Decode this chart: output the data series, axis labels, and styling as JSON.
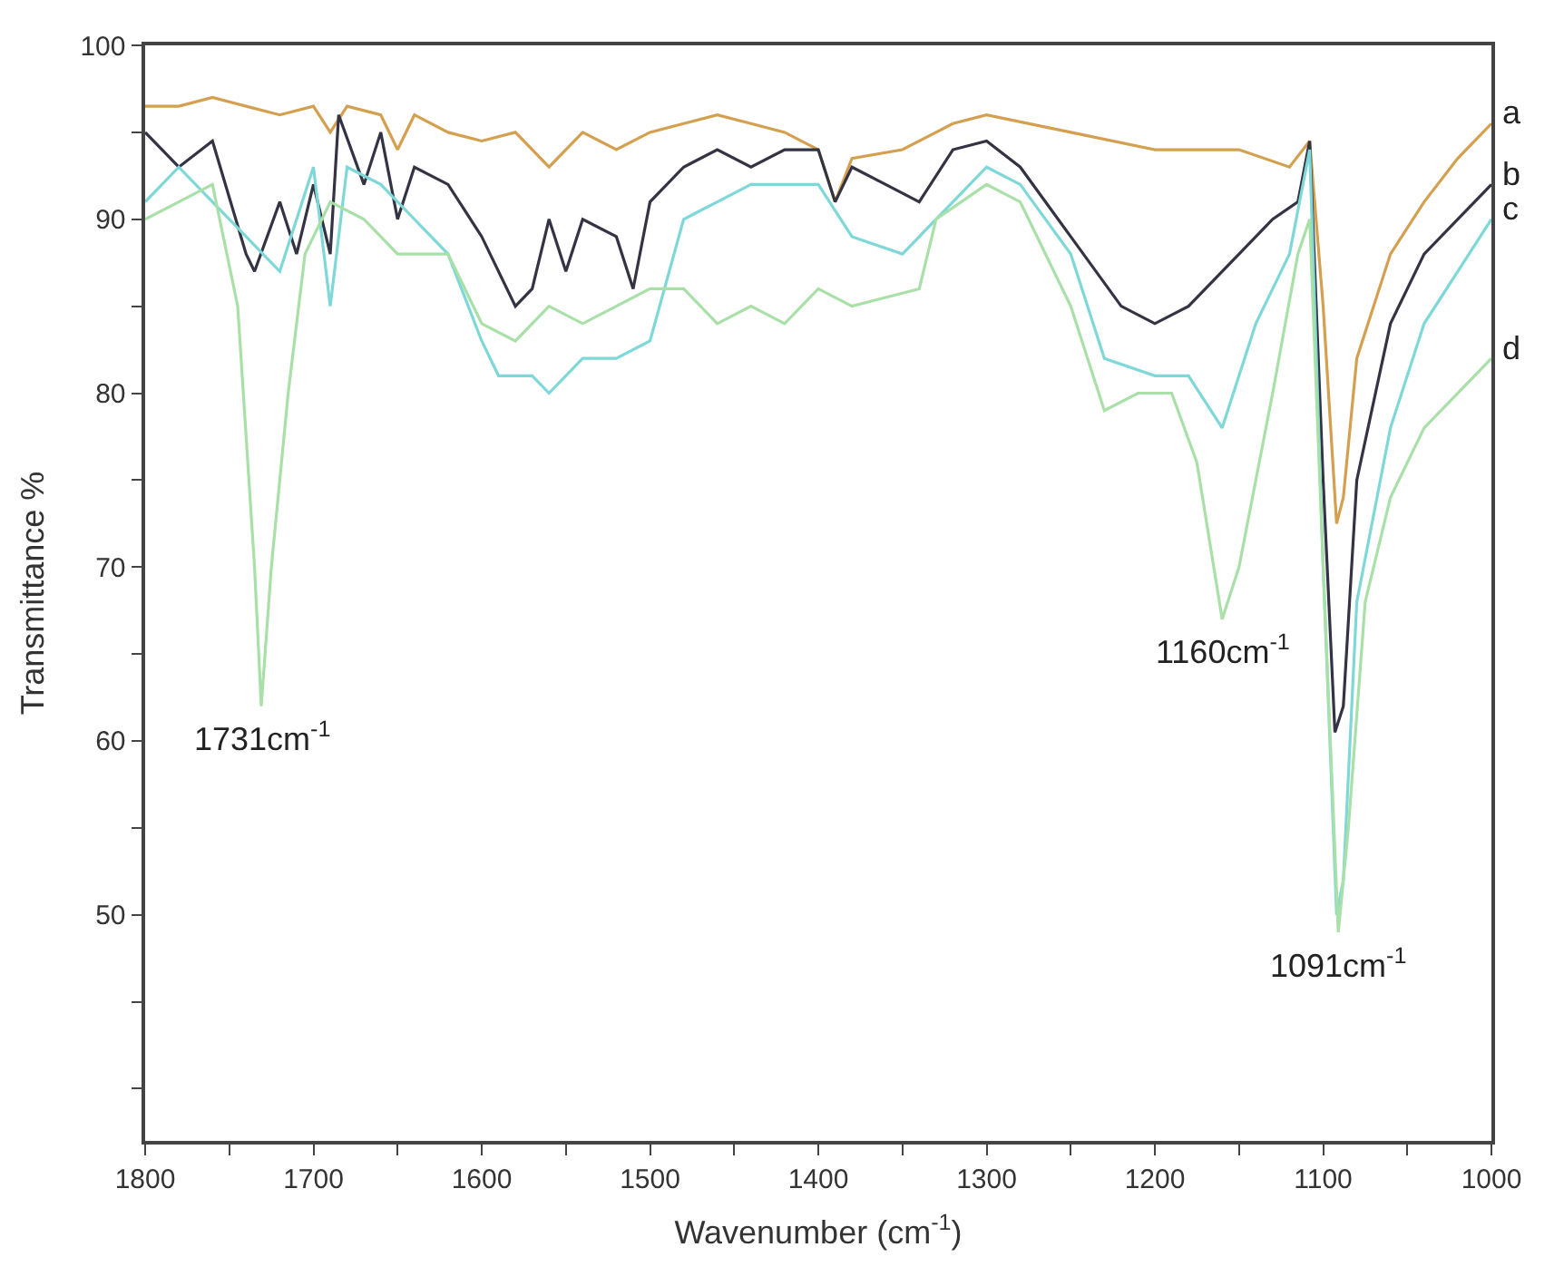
{
  "chart_data": {
    "type": "line",
    "xlabel": "Wavenumber (cm$^{-1}$)",
    "ylabel": "Transmittance %",
    "xlim": [
      1800,
      1000
    ],
    "ylim": [
      37,
      100
    ],
    "xticks": [
      1800,
      {
        "value": 1750,
        "label": null
      },
      1700,
      {
        "value": 1650,
        "label": null
      },
      1600,
      {
        "value": 1550,
        "label": null
      },
      1500,
      {
        "value": 1450,
        "label": null
      },
      1400,
      {
        "value": 1350,
        "label": null
      },
      1300,
      {
        "value": 1250,
        "label": null
      },
      1200,
      {
        "value": 1150,
        "label": null
      },
      1100,
      {
        "value": 1050,
        "label": null
      },
      1000
    ],
    "yticks": [
      {
        "value": 40,
        "label": null
      },
      {
        "value": 45,
        "label": null
      },
      50,
      {
        "value": 55,
        "label": null
      },
      60,
      {
        "value": 65,
        "label": null
      },
      70,
      {
        "value": 75,
        "label": null
      },
      80,
      {
        "value": 85,
        "label": null
      },
      90,
      {
        "value": 95,
        "label": null
      },
      100
    ],
    "legend": false,
    "marker": "none",
    "line_style": "solid",
    "series": [
      {
        "name": "a",
        "color": "#d4a050",
        "x": [
          1800,
          1780,
          1760,
          1740,
          1720,
          1700,
          1690,
          1680,
          1660,
          1650,
          1640,
          1620,
          1600,
          1580,
          1560,
          1540,
          1520,
          1500,
          1480,
          1460,
          1440,
          1420,
          1400,
          1390,
          1380,
          1350,
          1320,
          1300,
          1250,
          1200,
          1150,
          1120,
          1108,
          1100,
          1092,
          1088,
          1080,
          1060,
          1040,
          1020,
          1000
        ],
        "values": [
          96.5,
          96.5,
          97,
          96.5,
          96,
          96.5,
          95,
          96.5,
          96,
          94,
          96,
          95,
          94.5,
          95,
          93,
          95,
          94,
          95,
          95.5,
          96,
          95.5,
          95,
          94,
          91,
          93.5,
          94,
          95.5,
          96,
          95,
          94,
          94,
          93,
          94.5,
          85,
          72.5,
          74,
          82,
          88,
          91,
          93.5,
          95.5
        ]
      },
      {
        "name": "b",
        "color": "#333344",
        "x": [
          1800,
          1780,
          1760,
          1740,
          1735,
          1720,
          1710,
          1700,
          1690,
          1685,
          1670,
          1660,
          1650,
          1640,
          1620,
          1600,
          1580,
          1570,
          1560,
          1550,
          1540,
          1520,
          1510,
          1500,
          1480,
          1460,
          1440,
          1420,
          1400,
          1390,
          1380,
          1360,
          1340,
          1320,
          1300,
          1280,
          1250,
          1220,
          1200,
          1180,
          1150,
          1130,
          1115,
          1108,
          1100,
          1093,
          1088,
          1080,
          1060,
          1040,
          1000
        ],
        "values": [
          95,
          93,
          94.5,
          88,
          87,
          91,
          88,
          92,
          88,
          96,
          92,
          95,
          90,
          93,
          92,
          89,
          85,
          86,
          90,
          87,
          90,
          89,
          86,
          91,
          93,
          94,
          93,
          94,
          94,
          91,
          93,
          92,
          91,
          94,
          94.5,
          93,
          89,
          85,
          84,
          85,
          88,
          90,
          91,
          94.5,
          75,
          60.5,
          62,
          75,
          84,
          88,
          92
        ]
      },
      {
        "name": "c",
        "color": "#7fd8d8",
        "x": [
          1800,
          1780,
          1760,
          1740,
          1720,
          1700,
          1690,
          1680,
          1660,
          1640,
          1620,
          1600,
          1590,
          1570,
          1560,
          1540,
          1520,
          1500,
          1480,
          1460,
          1440,
          1400,
          1380,
          1350,
          1320,
          1300,
          1280,
          1250,
          1230,
          1200,
          1180,
          1160,
          1140,
          1120,
          1108,
          1100,
          1092,
          1088,
          1080,
          1060,
          1040,
          1000
        ],
        "values": [
          91,
          93,
          91,
          89,
          87,
          93,
          85,
          93,
          92,
          90,
          88,
          83,
          81,
          81,
          80,
          82,
          82,
          83,
          90,
          91,
          92,
          92,
          89,
          88,
          91,
          93,
          92,
          88,
          82,
          81,
          81,
          78,
          84,
          88,
          94,
          70,
          50,
          52,
          68,
          78,
          84,
          90
        ]
      },
      {
        "name": "d",
        "color": "#a8e0a8",
        "x": [
          1800,
          1780,
          1760,
          1745,
          1735,
          1731,
          1725,
          1715,
          1705,
          1690,
          1670,
          1650,
          1620,
          1600,
          1580,
          1560,
          1540,
          1520,
          1500,
          1480,
          1460,
          1440,
          1420,
          1400,
          1380,
          1340,
          1330,
          1300,
          1280,
          1250,
          1230,
          1210,
          1190,
          1175,
          1160,
          1150,
          1130,
          1115,
          1108,
          1100,
          1091,
          1085,
          1075,
          1060,
          1040,
          1000
        ],
        "values": [
          90,
          91,
          92,
          85,
          70,
          62,
          70,
          80,
          88,
          91,
          90,
          88,
          88,
          84,
          83,
          85,
          84,
          85,
          86,
          86,
          84,
          85,
          84,
          86,
          85,
          86,
          90,
          92,
          91,
          85,
          79,
          80,
          80,
          76,
          67,
          70,
          80,
          88,
          90,
          70,
          49,
          55,
          68,
          74,
          78,
          82
        ]
      }
    ],
    "annotations": [
      {
        "text": "1731cm$^{-1}$",
        "x": 1731,
        "y": 62
      },
      {
        "text": "1160cm$^{-1}$",
        "x": 1160,
        "y": 67
      },
      {
        "text": "1091cm$^{-1}$",
        "x": 1091,
        "y": 49
      }
    ]
  }
}
